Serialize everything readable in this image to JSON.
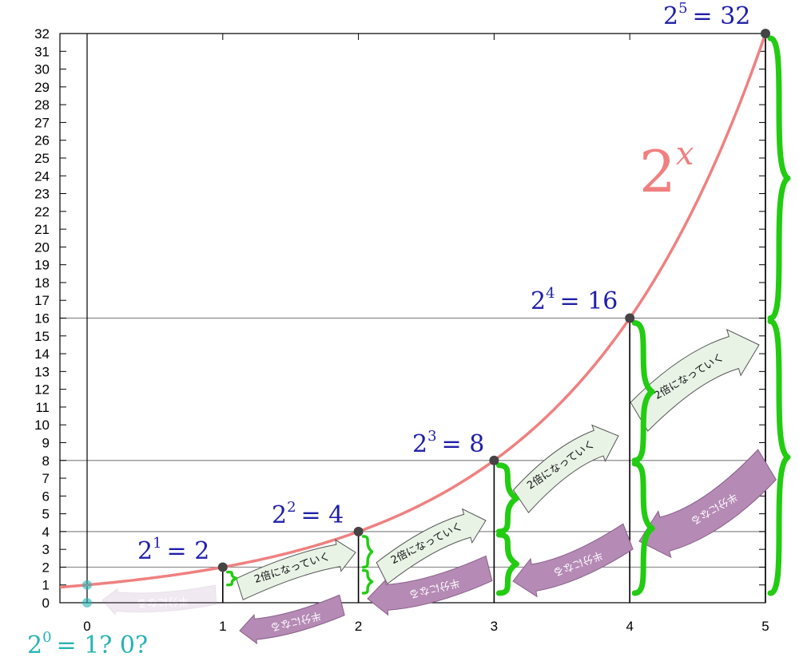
{
  "chart_data": {
    "type": "line",
    "function_label": {
      "base": "2",
      "exp": "x"
    },
    "x": [
      0,
      1,
      2,
      3,
      4,
      5
    ],
    "y": [
      1,
      2,
      4,
      8,
      16,
      32
    ],
    "xlim": [
      -0.2,
      5
    ],
    "ylim": [
      0,
      32
    ],
    "x_ticks": [
      "0",
      "1",
      "2",
      "3",
      "4",
      "5"
    ],
    "y_ticks": [
      "0",
      "1",
      "2",
      "3",
      "4",
      "5",
      "6",
      "7",
      "8",
      "9",
      "10",
      "11",
      "12",
      "13",
      "14",
      "15",
      "16",
      "17",
      "18",
      "19",
      "20",
      "21",
      "22",
      "23",
      "24",
      "25",
      "26",
      "27",
      "28",
      "29",
      "30",
      "31",
      "32"
    ],
    "grid_y": [
      2,
      4,
      8,
      16
    ],
    "point_labels": [
      {
        "base": "2",
        "exp": "1",
        "rhs": "= 2"
      },
      {
        "base": "2",
        "exp": "2",
        "rhs": "= 4"
      },
      {
        "base": "2",
        "exp": "3",
        "rhs": "= 8"
      },
      {
        "base": "2",
        "exp": "4",
        "rhs": "= 16"
      },
      {
        "base": "2",
        "exp": "5",
        "rhs": "= 32"
      }
    ],
    "zero_label": {
      "base": "2",
      "exp": "0",
      "rhs": "= 1?  0?"
    },
    "double_text": "2倍になっていく",
    "half_text": "半分になる",
    "colors": {
      "curve": "#f08080",
      "brace": "#22cc11",
      "point": "#444444",
      "math": "#1f1fa8",
      "question": "#26b3b3",
      "double_fill": "#e8f3e6",
      "half_fill": "#b58ab5"
    }
  }
}
